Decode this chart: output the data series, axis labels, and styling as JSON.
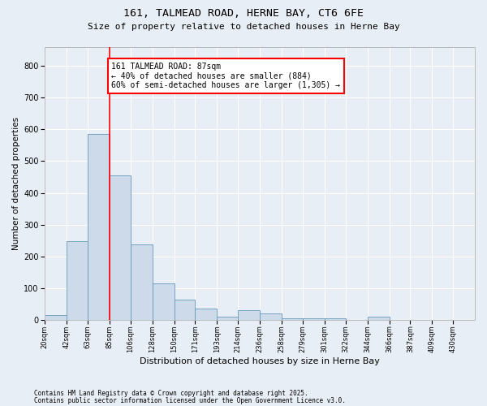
{
  "title_line1": "161, TALMEAD ROAD, HERNE BAY, CT6 6FE",
  "title_line2": "Size of property relative to detached houses in Herne Bay",
  "xlabel": "Distribution of detached houses by size in Herne Bay",
  "ylabel": "Number of detached properties",
  "bar_color": "#ccdaea",
  "bar_edge_color": "#6699bb",
  "bg_color": "#e8eef5",
  "grid_color": "#ffffff",
  "red_line_x": 85,
  "annotation_text": "161 TALMEAD ROAD: 87sqm\n← 40% of detached houses are smaller (884)\n60% of semi-detached houses are larger (1,305) →",
  "footnote1": "Contains HM Land Registry data © Crown copyright and database right 2025.",
  "footnote2": "Contains public sector information licensed under the Open Government Licence v3.0.",
  "bin_edges": [
    20,
    42,
    63,
    85,
    106,
    128,
    150,
    171,
    193,
    214,
    236,
    258,
    279,
    301,
    322,
    344,
    366,
    387,
    409,
    430,
    452
  ],
  "bar_heights": [
    15,
    248,
    585,
    455,
    238,
    115,
    65,
    35,
    10,
    30,
    20,
    5,
    5,
    5,
    0,
    10,
    0,
    0,
    0,
    0
  ],
  "ylim": [
    0,
    860
  ],
  "yticks": [
    0,
    100,
    200,
    300,
    400,
    500,
    600,
    700,
    800
  ]
}
